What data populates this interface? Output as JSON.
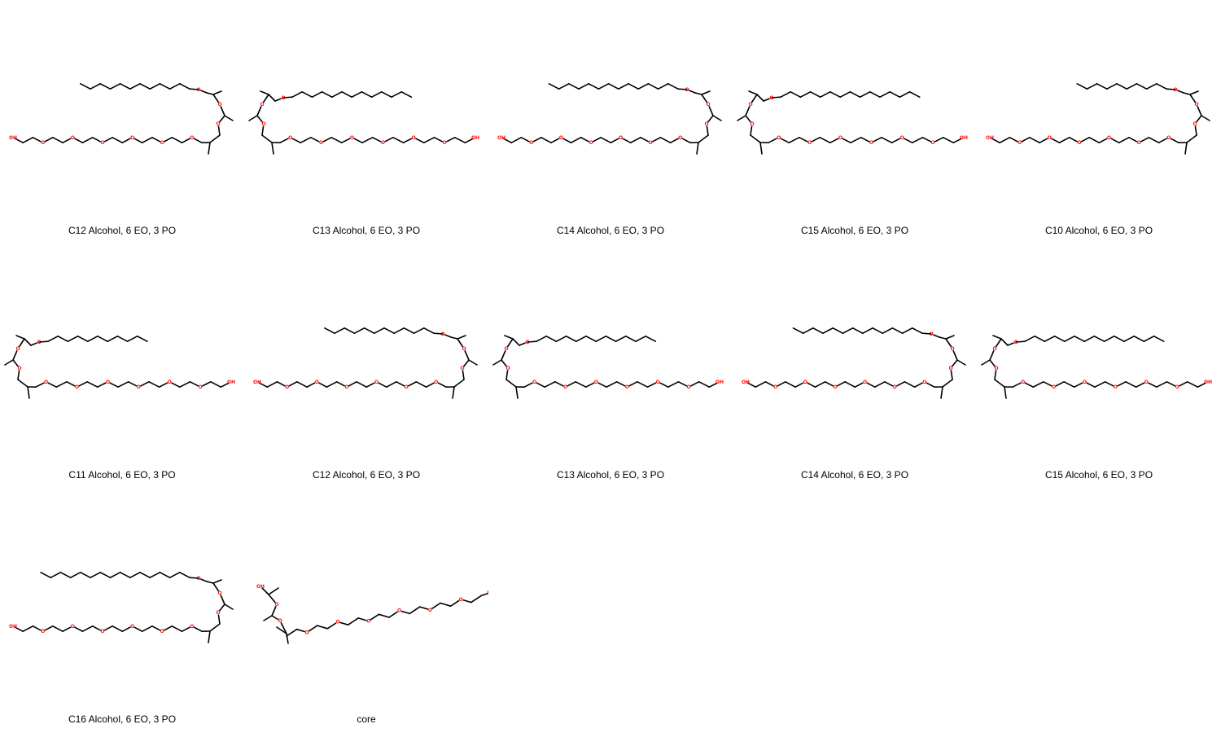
{
  "colors": {
    "oxygen": "#FF0D0D",
    "bond": "#000000",
    "background": "#FFFFFF"
  },
  "atoms": {
    "oxygen_symbol": "O",
    "hydroxyl_label": "OH"
  },
  "molecules": [
    {
      "name": "C12 Alcohol, 6 EO, 3 PO",
      "tail_carbons": 12,
      "eo": 6,
      "po": 3,
      "orientation": "right"
    },
    {
      "name": "C13 Alcohol, 6 EO, 3 PO",
      "tail_carbons": 13,
      "eo": 6,
      "po": 3,
      "orientation": "left"
    },
    {
      "name": "C14 Alcohol, 6 EO, 3 PO",
      "tail_carbons": 14,
      "eo": 6,
      "po": 3,
      "orientation": "right"
    },
    {
      "name": "C15 Alcohol, 6 EO, 3 PO",
      "tail_carbons": 15,
      "eo": 6,
      "po": 3,
      "orientation": "left"
    },
    {
      "name": "C10 Alcohol, 6 EO, 3 PO",
      "tail_carbons": 10,
      "eo": 6,
      "po": 3,
      "orientation": "right"
    },
    {
      "name": "C11 Alcohol, 6 EO, 3 PO",
      "tail_carbons": 11,
      "eo": 6,
      "po": 3,
      "orientation": "left"
    },
    {
      "name": "C12 Alcohol, 6 EO, 3 PO",
      "tail_carbons": 12,
      "eo": 6,
      "po": 3,
      "orientation": "right"
    },
    {
      "name": "C13 Alcohol, 6 EO, 3 PO",
      "tail_carbons": 13,
      "eo": 6,
      "po": 3,
      "orientation": "left"
    },
    {
      "name": "C14 Alcohol, 6 EO, 3 PO",
      "tail_carbons": 14,
      "eo": 6,
      "po": 3,
      "orientation": "right"
    },
    {
      "name": "C15 Alcohol, 6 EO, 3 PO",
      "tail_carbons": 15,
      "eo": 6,
      "po": 3,
      "orientation": "left"
    },
    {
      "name": "C16 Alcohol, 6 EO, 3 PO",
      "tail_carbons": 16,
      "eo": 6,
      "po": 3,
      "orientation": "right"
    },
    {
      "name": "core",
      "tail_carbons": 0,
      "eo": 6,
      "po": 3,
      "orientation": "core"
    }
  ]
}
